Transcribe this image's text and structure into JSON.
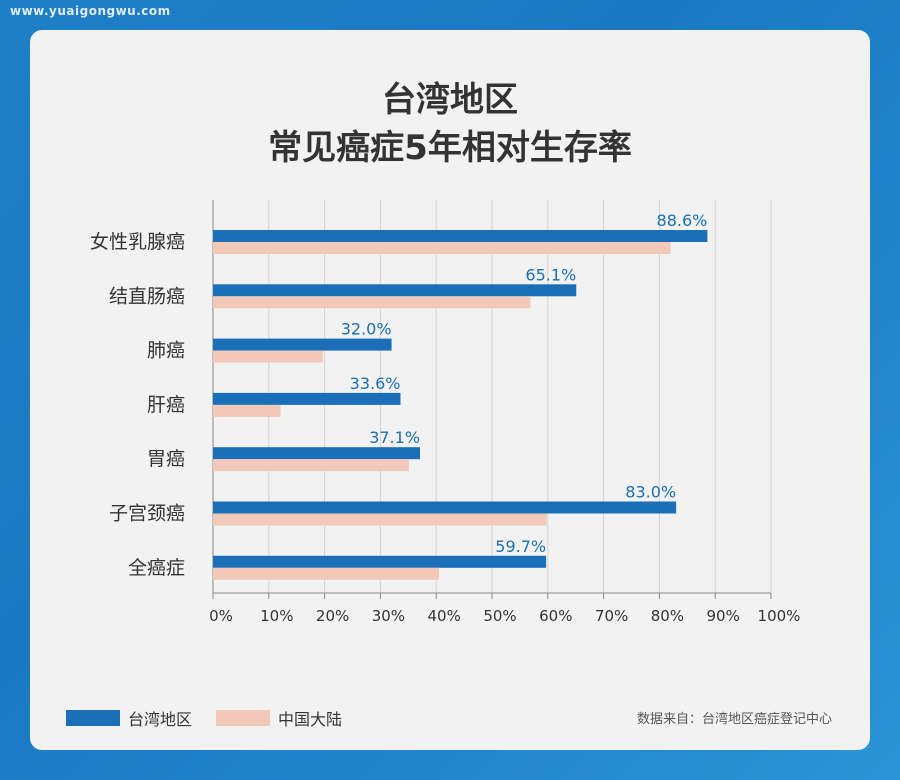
{
  "watermark": "www.yuaigongwu.com",
  "title_line1": "台湾地区",
  "title_line2": "常见癌症5年相对生存率",
  "source": "数据来自：台湾地区癌症登记中心",
  "colors": {
    "taiwan": "#1a6fb8",
    "mainland": "#f2c9b8",
    "grid": "#d4d4d4",
    "value_label": "#1a6fb3"
  },
  "legend": [
    {
      "label": "台湾地区",
      "color": "#1a6fb8"
    },
    {
      "label": "中国大陆",
      "color": "#f2c9b8"
    }
  ],
  "chart_data": {
    "type": "bar",
    "orientation": "horizontal",
    "title": "台湾地区 常见癌症5年相对生存率",
    "categories": [
      "女性乳腺癌",
      "结直肠癌",
      "肺癌",
      "肝癌",
      "胃癌",
      "子宫颈癌",
      "全癌症"
    ],
    "series": [
      {
        "name": "台湾地区",
        "values": [
          88.6,
          65.1,
          32.0,
          33.6,
          37.1,
          83.0,
          59.7
        ],
        "labels": [
          "88.6%",
          "65.1%",
          "32.0%",
          "33.6%",
          "37.1%",
          "83.0%",
          "59.7%"
        ]
      },
      {
        "name": "中国大陆",
        "values": [
          82.0,
          56.9,
          19.7,
          12.1,
          35.1,
          59.8,
          40.5
        ]
      }
    ],
    "xlim": [
      0,
      100
    ],
    "xticks": [
      "0%",
      "10%",
      "20%",
      "30%",
      "40%",
      "50%",
      "60%",
      "70%",
      "80%",
      "90%",
      "100%"
    ],
    "grid": true,
    "legend_position": "bottom-left"
  }
}
